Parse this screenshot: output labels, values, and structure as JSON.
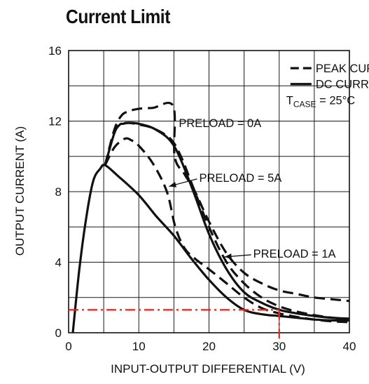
{
  "chart_data": {
    "type": "line",
    "title": "Current Limit",
    "xlabel": "INPUT-OUTPUT DIFFERENTIAL (V)",
    "ylabel": "OUTPUT CURRENT (A)",
    "xlim": [
      0,
      40
    ],
    "ylim": [
      0,
      16
    ],
    "xticks": [
      0,
      10,
      20,
      30,
      40
    ],
    "yticks": [
      0,
      4,
      8,
      12,
      16
    ],
    "grid": true,
    "legend": {
      "position": "top-right",
      "entries": [
        {
          "label": "PEAK CURRENT LIMIT",
          "style": "dashed"
        },
        {
          "label": "DC CURRENT LIMIT",
          "style": "solid"
        }
      ],
      "condition": {
        "prefix": "T",
        "subscript": "CASE",
        "suffix": " = 25°C"
      }
    },
    "series": [
      {
        "style": "solid",
        "group": "dc",
        "x": [
          0.6,
          1.5,
          2.5,
          3.5,
          4.5,
          5.2,
          7,
          10,
          12.5,
          15,
          17.5,
          20,
          22.5,
          25,
          27.5,
          30,
          32.5,
          35,
          37.5,
          40
        ],
        "y": [
          0,
          3.5,
          6.5,
          8.6,
          9.3,
          9.5,
          8.9,
          7.8,
          6.6,
          5.5,
          4.2,
          3.0,
          2.0,
          1.3,
          1.05,
          0.95,
          0.85,
          0.75,
          0.7,
          0.7
        ]
      },
      {
        "style": "solid",
        "group": "dc",
        "x": [
          5.2,
          6.5,
          7.3,
          7.8,
          8.5,
          10,
          12.5,
          15,
          17.5,
          20,
          22.5,
          25,
          27.5,
          30,
          32.5,
          35,
          37.5,
          40
        ],
        "y": [
          9.5,
          11.3,
          11.8,
          11.85,
          11.9,
          11.85,
          11.5,
          10.6,
          8.3,
          5.6,
          3.6,
          2.3,
          1.7,
          1.3,
          1.1,
          0.95,
          0.85,
          0.8
        ]
      },
      {
        "style": "dashed",
        "group": "peak",
        "x": [
          5.2,
          6.5,
          7.5,
          8.5,
          10,
          12,
          14.9,
          15.1,
          16.5,
          18,
          20,
          22.5,
          25,
          27.5,
          30,
          32.5,
          35,
          37.5,
          40
        ],
        "y": [
          9.5,
          11.5,
          12.3,
          12.55,
          12.7,
          12.75,
          12.85,
          10.0,
          9.0,
          8.0,
          6.3,
          4.5,
          3.4,
          2.8,
          2.4,
          2.2,
          2.0,
          1.9,
          1.8
        ]
      },
      {
        "style": "dashed",
        "group": "peak",
        "x": [
          5.2,
          6.5,
          7.5,
          8.5,
          10,
          12,
          14.5,
          16,
          17.5,
          20,
          22.5,
          25,
          27.5,
          30,
          32.5,
          35,
          37.5,
          40
        ],
        "y": [
          9.5,
          11.4,
          11.8,
          11.9,
          11.8,
          11.6,
          11.0,
          10.0,
          8.5,
          6.0,
          4.0,
          2.8,
          2.0,
          1.5,
          1.2,
          1.0,
          0.85,
          0.75
        ]
      },
      {
        "style": "dashed",
        "group": "peak",
        "x": [
          5.2,
          6.5,
          8,
          9,
          10,
          12,
          14,
          15.2,
          16.5,
          18,
          20,
          22.5,
          25,
          27.5,
          30,
          32.5,
          35,
          37.5,
          40
        ],
        "y": [
          9.5,
          10.5,
          11.0,
          10.9,
          10.6,
          9.6,
          8.0,
          6.0,
          4.8,
          4.2,
          3.6,
          2.8,
          2.0,
          1.4,
          1.1,
          0.9,
          0.75,
          0.65,
          0.6
        ]
      }
    ],
    "annotations": [
      {
        "text": "PRELOAD = 0A",
        "anchor": {
          "x": 15.6,
          "y": 11.9
        },
        "label_at": {
          "x": 15.7,
          "y": 11.9
        },
        "arrow": false
      },
      {
        "text": "PRELOAD = 5A",
        "anchor": {
          "x": 14.3,
          "y": 8.3
        },
        "label_at": {
          "x": 18.6,
          "y": 8.8
        },
        "arrow": true
      },
      {
        "text": "PRELOAD = 1A",
        "anchor": {
          "x": 22.2,
          "y": 4.3
        },
        "label_at": {
          "x": 26.3,
          "y": 4.5
        },
        "arrow": true
      }
    ],
    "reference": {
      "x": 30,
      "y": 1.3,
      "color": "#e8231b",
      "style": "dash-dot"
    }
  }
}
